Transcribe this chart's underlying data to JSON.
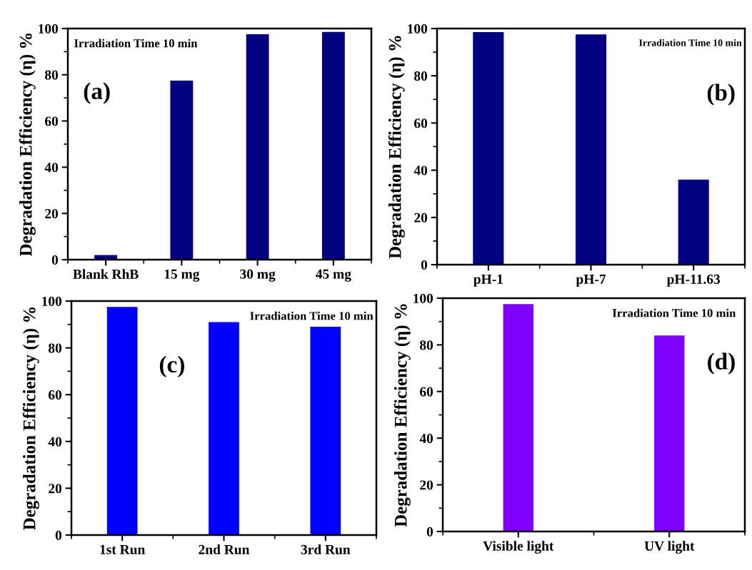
{
  "chart_data": [
    {
      "type": "bar",
      "categories": [
        "Blank RhB",
        "15 mg",
        "30 mg",
        "45 mg"
      ],
      "values": [
        2.0,
        77.5,
        97.5,
        98.5
      ],
      "color": "#000080",
      "ylabel": "Degradation Efficiency (η) %",
      "ylim": [
        0,
        100
      ],
      "yticks": [
        0,
        20,
        40,
        60,
        80,
        100
      ],
      "annotations": [
        "Irradiation Time 10 min",
        "(a)"
      ]
    },
    {
      "type": "bar",
      "categories": [
        "pH-1",
        "pH-7",
        "pH-11.63"
      ],
      "values": [
        98.5,
        97.5,
        36
      ],
      "color": "#000080",
      "ylabel": "Degradation Efficiency (η) %",
      "ylim": [
        0,
        100
      ],
      "yticks": [
        0,
        20,
        40,
        60,
        80,
        100
      ],
      "annotations": [
        "Irradiation Time 10 min",
        "(b)"
      ]
    },
    {
      "type": "bar",
      "categories": [
        "1st Run",
        "2nd Run",
        "3rd Run"
      ],
      "values": [
        97.5,
        91,
        89
      ],
      "color": "#0000ff",
      "ylabel": "Degradation Efficiency (η) %",
      "ylim": [
        0,
        100
      ],
      "yticks": [
        0,
        20,
        40,
        60,
        80,
        100
      ],
      "annotations": [
        "Irradiation Time 10 min",
        "(c)"
      ]
    },
    {
      "type": "bar",
      "categories": [
        "Visible light",
        "UV light"
      ],
      "values": [
        97.5,
        84
      ],
      "color": "#8000ff",
      "ylabel": "Degradation Efficiency (η) %",
      "ylim": [
        0,
        100
      ],
      "yticks": [
        0,
        20,
        40,
        60,
        80,
        100
      ],
      "annotations": [
        "Irradiation Time 10 min",
        "(d)"
      ]
    }
  ]
}
